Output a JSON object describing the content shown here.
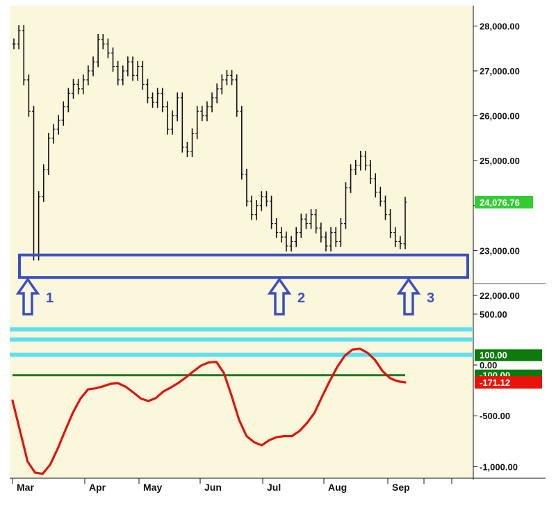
{
  "colors": {
    "background": "#fbf7dc",
    "price_bars": "#111111",
    "support_box": "#3b4fc0",
    "arrows": "#3b4fc0",
    "oscillator": "#e0140c",
    "cyan_lines": "#5fe0f0",
    "green_line": "#1f7a1f",
    "price_badge": "#33cc33",
    "level_badge": "#0c7a0c",
    "value_badge": "#e8140c"
  },
  "chart_data": [
    {
      "type": "ohlc",
      "panel": "price",
      "ylim": [
        22000,
        28300
      ],
      "y_ticks": [
        {
          "value": 28000,
          "label": "28,000.00"
        },
        {
          "value": 27000,
          "label": "27,000.00"
        },
        {
          "value": 26000,
          "label": "26,000.00"
        },
        {
          "value": 25000,
          "label": "25,000.00"
        },
        {
          "value": 24000,
          "label": ""
        },
        {
          "value": 23000,
          "label": "23,000.00"
        },
        {
          "value": 22000,
          "label": "22,000.00"
        }
      ],
      "last_value": {
        "value": 24076.76,
        "label": "24,076.76"
      },
      "support_zone": [
        22400,
        22900
      ],
      "callouts": [
        "1",
        "2",
        "3"
      ],
      "series": [
        {
          "values": [
            27600,
            27900,
            26800,
            26100,
            22900,
            24200,
            24800,
            25500,
            25700,
            25900,
            26200,
            26500,
            26700,
            26600,
            26800,
            27000,
            27200,
            27700,
            27600,
            27400,
            27100,
            26800,
            27000,
            27200,
            26900,
            27100,
            26700,
            26400,
            26300,
            26500,
            26200,
            25700,
            26000,
            26400,
            25300,
            25200,
            25600,
            26100,
            26000,
            26200,
            26400,
            26600,
            26800,
            26900,
            26800,
            26100,
            24700,
            24100,
            23800,
            24000,
            24200,
            24100,
            23600,
            23400,
            23300,
            23100,
            23200,
            23400,
            23700,
            23600,
            23800,
            23500,
            23300,
            23100,
            23400,
            23200,
            23600,
            24400,
            24800,
            24900,
            25100,
            24900,
            24600,
            24300,
            24100,
            23800,
            23400,
            23200,
            23150,
            24076.76
          ]
        }
      ]
    },
    {
      "type": "line",
      "panel": "oscillator",
      "ylim": [
        -1100,
        650
      ],
      "y_ticks": [
        {
          "value": 500,
          "label": "500.00"
        },
        {
          "value": 0,
          "label": "0.00"
        },
        {
          "value": -500,
          "label": "-500.00"
        },
        {
          "value": -1000,
          "label": "-1,000.00"
        }
      ],
      "reference_levels": [
        {
          "value": 350,
          "style": "cyan"
        },
        {
          "value": 250,
          "style": "cyan"
        },
        {
          "value": 100,
          "style": "cyan",
          "label": "100.00"
        },
        {
          "value": -100,
          "style": "green",
          "label": "-100.00"
        }
      ],
      "last_value": {
        "value": -171.12,
        "label": "-171.12"
      },
      "series": [
        {
          "values": [
            -350,
            -650,
            -950,
            -1060,
            -1070,
            -980,
            -820,
            -640,
            -470,
            -330,
            -240,
            -230,
            -210,
            -185,
            -180,
            -215,
            -270,
            -330,
            -355,
            -325,
            -260,
            -220,
            -175,
            -120,
            -60,
            -5,
            25,
            30,
            -80,
            -300,
            -540,
            -700,
            -760,
            -790,
            -740,
            -710,
            -700,
            -700,
            -650,
            -570,
            -470,
            -310,
            -160,
            -20,
            90,
            150,
            160,
            120,
            50,
            -60,
            -130,
            -160,
            -171.12
          ]
        }
      ]
    }
  ],
  "x_axis": {
    "months": [
      "Mar",
      "Apr",
      "May",
      "Jun",
      "Jul",
      "Aug",
      "Sep"
    ]
  }
}
